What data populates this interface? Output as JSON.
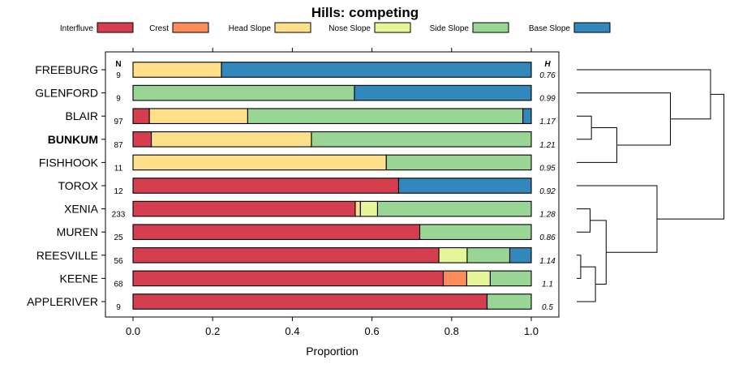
{
  "chart_data": {
    "type": "bar",
    "subtype": "stacked-horizontal-proportion",
    "title": "Hills: competing",
    "xlabel": "Proportion",
    "xlim": [
      0,
      1
    ],
    "xticks": [
      "0.0",
      "0.2",
      "0.4",
      "0.6",
      "0.8",
      "1.0"
    ],
    "n_header": "N",
    "h_header": "H",
    "legend": [
      {
        "name": "Interfluve",
        "color": "#D53E4F"
      },
      {
        "name": "Crest",
        "color": "#FC8D59"
      },
      {
        "name": "Head Slope",
        "color": "#FEE08B"
      },
      {
        "name": "Nose Slope",
        "color": "#E6F598"
      },
      {
        "name": "Side Slope",
        "color": "#99D594"
      },
      {
        "name": "Base Slope",
        "color": "#3288BD"
      }
    ],
    "rows": [
      {
        "name": "FREEBURG",
        "n": "9",
        "h": "0.76",
        "bold": false,
        "values": [
          0,
          0,
          0.222,
          0,
          0,
          0.778
        ]
      },
      {
        "name": "GLENFORD",
        "n": "9",
        "h": "0.99",
        "bold": false,
        "values": [
          0,
          0,
          0,
          0,
          0.556,
          0.444
        ]
      },
      {
        "name": "BLAIR",
        "n": "97",
        "h": "1.17",
        "bold": false,
        "values": [
          0.041,
          0,
          0.247,
          0,
          0.691,
          0.021
        ]
      },
      {
        "name": "BUNKUM",
        "n": "87",
        "h": "1.21",
        "bold": true,
        "values": [
          0.046,
          0,
          0.402,
          0,
          0.552,
          0
        ]
      },
      {
        "name": "FISHHOOK",
        "n": "11",
        "h": "0.95",
        "bold": false,
        "values": [
          0,
          0,
          0.636,
          0,
          0.364,
          0
        ]
      },
      {
        "name": "TOROX",
        "n": "12",
        "h": "0.92",
        "bold": false,
        "values": [
          0.667,
          0,
          0,
          0,
          0,
          0.333
        ]
      },
      {
        "name": "XENIA",
        "n": "233",
        "h": "1.28",
        "bold": false,
        "values": [
          0.558,
          0,
          0.013,
          0.043,
          0.386,
          0
        ]
      },
      {
        "name": "MUREN",
        "n": "25",
        "h": "0.86",
        "bold": false,
        "values": [
          0.72,
          0,
          0,
          0,
          0.28,
          0
        ]
      },
      {
        "name": "REESVILLE",
        "n": "56",
        "h": "1.14",
        "bold": false,
        "values": [
          0.768,
          0,
          0,
          0.071,
          0.107,
          0.054
        ]
      },
      {
        "name": "KEENE",
        "n": "68",
        "h": "1.1",
        "bold": false,
        "values": [
          0.779,
          0.059,
          0,
          0.059,
          0.103,
          0
        ]
      },
      {
        "name": "APPLERIVER",
        "n": "9",
        "h": "0.5",
        "bold": false,
        "values": [
          0.889,
          0,
          0,
          0,
          0.111,
          0
        ]
      }
    ],
    "dendrogram": {
      "description": "hierarchical clustering of rows",
      "merges": [
        {
          "a": "BLAIR",
          "b": "BUNKUM",
          "height": 0.055
        },
        {
          "a": "m0",
          "b": "FISHHOOK",
          "height": 0.15
        },
        {
          "a": "GLENFORD",
          "b": "m1",
          "height": 0.35
        },
        {
          "a": "FREEBURG",
          "b": "m2",
          "height": 0.5
        },
        {
          "a": "REESVILLE",
          "b": "KEENE",
          "height": 0.015
        },
        {
          "a": "m4",
          "b": "APPLERIVER",
          "height": 0.07
        },
        {
          "a": "XENIA",
          "b": "MUREN",
          "height": 0.05
        },
        {
          "a": "m6",
          "b": "m5",
          "height": 0.11
        },
        {
          "a": "TOROX",
          "b": "m7",
          "height": 0.3
        },
        {
          "a": "m3",
          "b": "m8",
          "height": 0.55
        }
      ]
    }
  }
}
